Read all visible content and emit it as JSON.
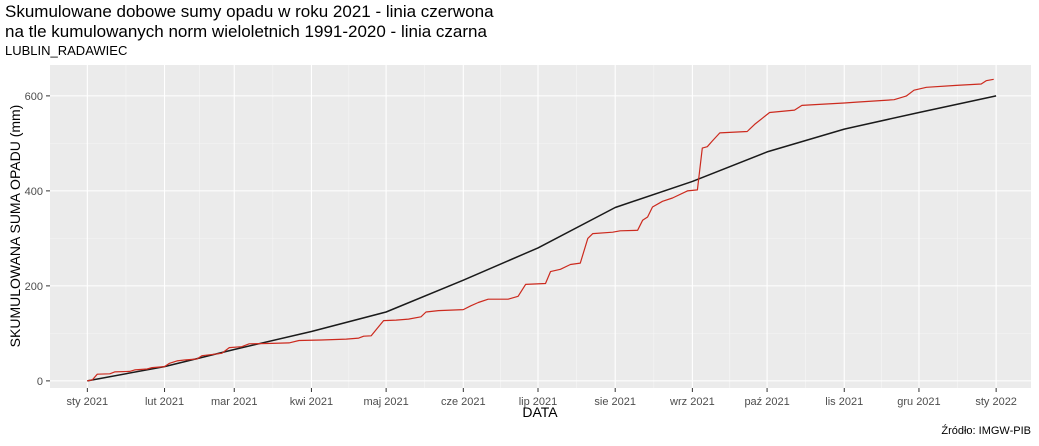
{
  "title_lines": [
    "Skumulowane dobowe sumy opadu w roku 2021 - linia czerwona",
    "na tle kumulowanych norm wieloletnich 1991-2020 - linia czarna"
  ],
  "subtitle": "LUBLIN_RADAWIEC",
  "source": "Źródło: IMGW-PIB",
  "chart_data": {
    "type": "line",
    "xlabel": "DATA",
    "ylabel": "SKUMULOWANA SUMA OPADU (mm)",
    "x_ticks": [
      "sty 2021",
      "lut 2021",
      "mar 2021",
      "kwi 2021",
      "maj 2021",
      "cze 2021",
      "lip 2021",
      "sie 2021",
      "wrz 2021",
      "paź 2021",
      "lis 2021",
      "gru 2021",
      "sty 2022"
    ],
    "x_unit": "day of year 2021",
    "x_tick_values": [
      1,
      32,
      60,
      91,
      121,
      152,
      182,
      213,
      244,
      274,
      305,
      335,
      366
    ],
    "xlim": [
      -14,
      380
    ],
    "y_ticks": [
      0,
      200,
      400,
      600
    ],
    "ylim": [
      -15,
      665
    ],
    "grid": true,
    "series": [
      {
        "color": "#cc2a1e",
        "points": [
          [
            1,
            0
          ],
          [
            3,
            2
          ],
          [
            5,
            14
          ],
          [
            10,
            15
          ],
          [
            12,
            19
          ],
          [
            18,
            20
          ],
          [
            20,
            23
          ],
          [
            25,
            25
          ],
          [
            27,
            28
          ],
          [
            32,
            30
          ],
          [
            34,
            37
          ],
          [
            37,
            42
          ],
          [
            40,
            44
          ],
          [
            45,
            46
          ],
          [
            47,
            53
          ],
          [
            50,
            55
          ],
          [
            55,
            58
          ],
          [
            58,
            70
          ],
          [
            63,
            72
          ],
          [
            66,
            78
          ],
          [
            75,
            79
          ],
          [
            82,
            80
          ],
          [
            86,
            85
          ],
          [
            95,
            86
          ],
          [
            105,
            88
          ],
          [
            110,
            90
          ],
          [
            112,
            94
          ],
          [
            115,
            95
          ],
          [
            117,
            108
          ],
          [
            120,
            127
          ],
          [
            125,
            128
          ],
          [
            130,
            130
          ],
          [
            135,
            135
          ],
          [
            137,
            145
          ],
          [
            142,
            148
          ],
          [
            152,
            150
          ],
          [
            155,
            158
          ],
          [
            158,
            165
          ],
          [
            162,
            172
          ],
          [
            170,
            172
          ],
          [
            174,
            178
          ],
          [
            177,
            203
          ],
          [
            185,
            205
          ],
          [
            187,
            230
          ],
          [
            191,
            235
          ],
          [
            195,
            245
          ],
          [
            199,
            248
          ],
          [
            202,
            300
          ],
          [
            204,
            310
          ],
          [
            212,
            313
          ],
          [
            215,
            316
          ],
          [
            222,
            317
          ],
          [
            224,
            338
          ],
          [
            226,
            345
          ],
          [
            228,
            366
          ],
          [
            232,
            378
          ],
          [
            236,
            385
          ],
          [
            242,
            400
          ],
          [
            246,
            402
          ],
          [
            248,
            490
          ],
          [
            250,
            493
          ],
          [
            252,
            505
          ],
          [
            255,
            522
          ],
          [
            266,
            525
          ],
          [
            269,
            540
          ],
          [
            275,
            565
          ],
          [
            285,
            570
          ],
          [
            288,
            580
          ],
          [
            295,
            582
          ],
          [
            305,
            585
          ],
          [
            310,
            587
          ],
          [
            325,
            592
          ],
          [
            330,
            600
          ],
          [
            333,
            612
          ],
          [
            338,
            618
          ],
          [
            350,
            622
          ],
          [
            360,
            625
          ],
          [
            362,
            632
          ],
          [
            365,
            635
          ]
        ]
      },
      {
        "color": "#1a1a1a",
        "points": [
          [
            1,
            0
          ],
          [
            32,
            30
          ],
          [
            60,
            66
          ],
          [
            91,
            104
          ],
          [
            121,
            145
          ],
          [
            152,
            212
          ],
          [
            182,
            280
          ],
          [
            213,
            365
          ],
          [
            244,
            420
          ],
          [
            274,
            482
          ],
          [
            305,
            530
          ],
          [
            335,
            565
          ],
          [
            366,
            600
          ]
        ]
      }
    ]
  }
}
